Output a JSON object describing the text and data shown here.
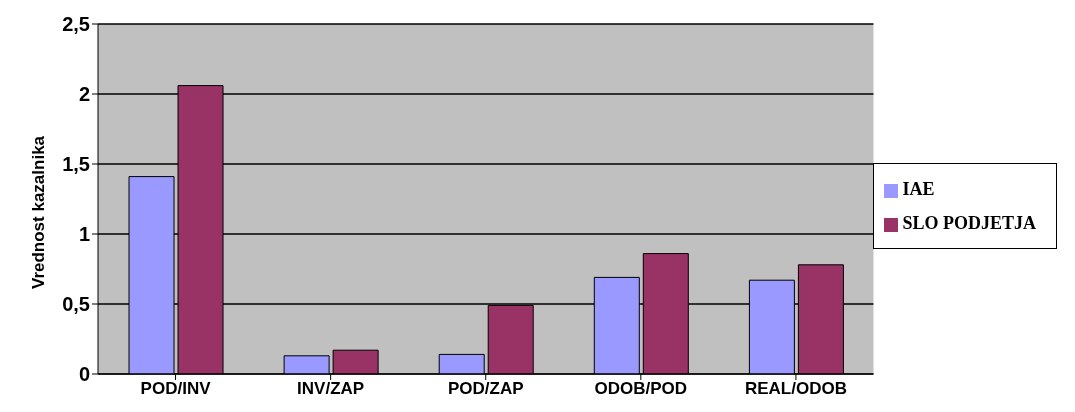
{
  "chart_data": {
    "type": "bar",
    "ylabel": "Vrednost kazalnika",
    "categories": [
      "POD/INV",
      "INV/ZAP",
      "POD/ZAP",
      "ODOB/POD",
      "REAL/ODOB"
    ],
    "series": [
      {
        "name": "IAE",
        "color": "#9999ff",
        "values": [
          1.41,
          0.13,
          0.14,
          0.69,
          0.67
        ]
      },
      {
        "name": "SLO PODJETJA",
        "color": "#993366",
        "values": [
          2.06,
          0.17,
          0.49,
          0.86,
          0.78
        ]
      }
    ],
    "ylim": [
      0,
      2.5
    ],
    "yticks": [
      0,
      {
        "value": 0.5,
        "label": "0,5"
      },
      1,
      {
        "value": 1.5,
        "label": "1,5"
      },
      2,
      {
        "value": 2.5,
        "label": "2,5"
      }
    ],
    "grid": "y",
    "legend": "right"
  }
}
